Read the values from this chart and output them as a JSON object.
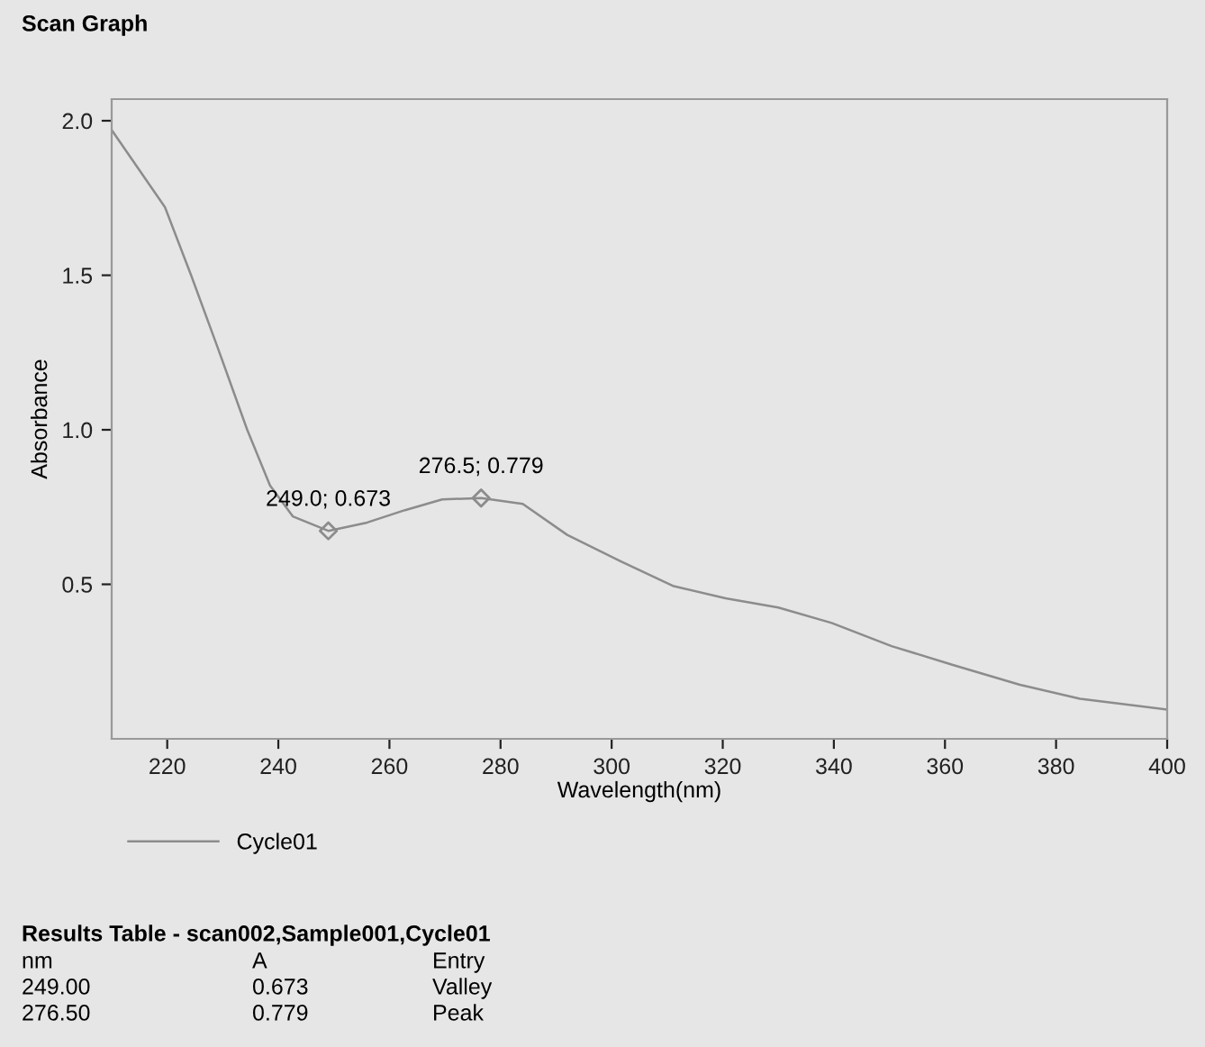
{
  "chart_data": {
    "type": "line",
    "title": "Scan Graph",
    "xlabel": "Wavelength(nm)",
    "ylabel": "Absorbance",
    "xlim": [
      210,
      400
    ],
    "ylim": [
      0,
      2.07
    ],
    "xticks": [
      220,
      240,
      260,
      280,
      300,
      320,
      340,
      360,
      380,
      400
    ],
    "yticks": [
      {
        "value": 0.5,
        "label": "0.5"
      },
      {
        "value": 1.0,
        "label": "1.0"
      },
      {
        "value": 1.5,
        "label": "1.5"
      },
      {
        "value": 2.0,
        "label": "2.0"
      }
    ],
    "grid": false,
    "legend": "bottom left",
    "series": [
      {
        "name": "Cycle01",
        "color": "#8c8c8c",
        "marker": "none",
        "x": [
          210,
          219.6,
          224.3,
          229,
          234.4,
          238.5,
          242.6,
          249,
          256,
          262.8,
          269.5,
          276.5,
          284,
          292,
          301.6,
          311,
          320.5,
          330,
          339.6,
          350.4,
          361.3,
          373.5,
          384.3,
          400
        ],
        "values": [
          1.97,
          1.72,
          1.5,
          1.27,
          1.0,
          0.82,
          0.72,
          0.673,
          0.7,
          0.74,
          0.775,
          0.779,
          0.76,
          0.66,
          0.575,
          0.495,
          0.455,
          0.425,
          0.375,
          0.3,
          0.24,
          0.175,
          0.13,
          0.095
        ]
      },
      {
        "type": "scatter",
        "color": "#8c8c8c",
        "marker": "diamond",
        "x": [
          249,
          276.5
        ],
        "values": [
          0.673,
          0.779
        ]
      }
    ],
    "annotations": [
      {
        "text": "249.0; 0.673",
        "x": 249,
        "y": 0.673
      },
      {
        "text": "276.5; 0.779",
        "x": 276.5,
        "y": 0.779
      },
      "Results Table - scan002,Sample001,Cycle01",
      "nm",
      "A",
      "Entry",
      "249.00",
      "0.673",
      "Valley",
      "276.50",
      "0.779",
      "Peak"
    ]
  }
}
